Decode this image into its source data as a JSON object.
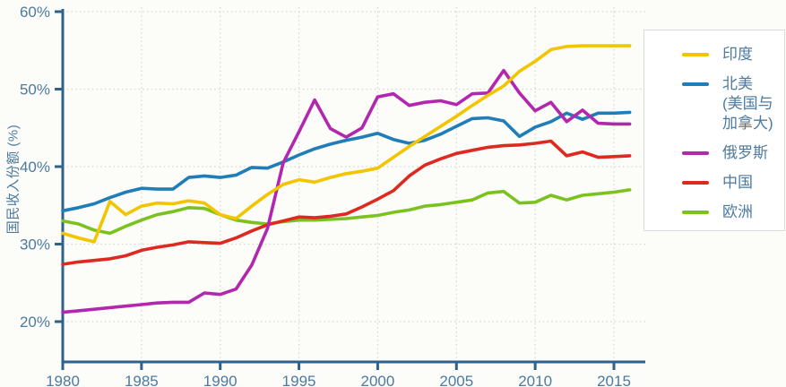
{
  "chart_data": {
    "type": "line",
    "title": "",
    "xlabel": "",
    "ylabel": "国民收入份额 (%)",
    "xlim": [
      1980,
      2017
    ],
    "ylim": [
      14.8,
      60
    ],
    "grid": "dotted",
    "legend_position": "right",
    "x_ticks": [
      1980,
      1985,
      1990,
      1995,
      2000,
      2005,
      2010,
      2015
    ],
    "y_ticks": [
      20,
      30,
      40,
      50,
      60
    ],
    "y_tick_labels": [
      "20%",
      "30%",
      "40%",
      "50%",
      "60%"
    ],
    "x": [
      1980,
      1981,
      1982,
      1983,
      1984,
      1985,
      1986,
      1987,
      1988,
      1989,
      1990,
      1991,
      1992,
      1993,
      1994,
      1995,
      1996,
      1997,
      1998,
      1999,
      2000,
      2001,
      2002,
      2003,
      2004,
      2005,
      2006,
      2007,
      2008,
      2009,
      2010,
      2011,
      2012,
      2013,
      2014,
      2015,
      2016
    ],
    "series": [
      {
        "id": "india",
        "name": "印度",
        "legend_lines": [
          "印度"
        ],
        "color": "#F2C500",
        "values": [
          31.4,
          30.8,
          30.3,
          35.5,
          33.8,
          34.9,
          35.3,
          35.2,
          35.6,
          35.3,
          33.8,
          33.3,
          34.9,
          36.4,
          37.7,
          38.3,
          38.0,
          38.6,
          39.1,
          39.4,
          39.8,
          41.2,
          42.6,
          43.9,
          45.2,
          46.5,
          47.9,
          49.2,
          50.4,
          52.3,
          53.6,
          55.1,
          55.5,
          55.6,
          55.6,
          55.6,
          55.6
        ]
      },
      {
        "id": "north-america",
        "name": "北美 (美国与加拿大)",
        "legend_lines": [
          "北美",
          "(美国与",
          "加拿大)"
        ],
        "color": "#1F7DB8",
        "values": [
          34.3,
          34.7,
          35.2,
          36.0,
          36.7,
          37.2,
          37.1,
          37.1,
          38.6,
          38.8,
          38.6,
          38.9,
          39.9,
          39.8,
          40.6,
          41.5,
          42.3,
          42.9,
          43.4,
          43.8,
          44.3,
          43.5,
          43.0,
          43.4,
          44.2,
          45.2,
          46.2,
          46.3,
          45.9,
          43.9,
          45.1,
          45.8,
          46.9,
          46.1,
          46.9,
          46.9,
          47.0
        ]
      },
      {
        "id": "russia",
        "name": "俄罗斯",
        "legend_lines": [
          "俄罗斯"
        ],
        "color": "#B227AE",
        "values": [
          21.2,
          21.4,
          21.6,
          21.8,
          22.0,
          22.2,
          22.4,
          22.5,
          22.5,
          23.7,
          23.5,
          24.2,
          27.3,
          32.0,
          40.5,
          44.5,
          48.6,
          44.9,
          43.8,
          45.0,
          49.0,
          49.4,
          47.9,
          48.3,
          48.5,
          48.0,
          49.4,
          49.5,
          52.4,
          49.5,
          47.2,
          48.3,
          45.8,
          47.3,
          45.6,
          45.5,
          45.5
        ]
      },
      {
        "id": "china",
        "name": "中国",
        "legend_lines": [
          "中国"
        ],
        "color": "#DE2920",
        "values": [
          27.4,
          27.7,
          27.9,
          28.1,
          28.5,
          29.2,
          29.6,
          29.9,
          30.3,
          30.2,
          30.1,
          30.8,
          31.7,
          32.5,
          33.0,
          33.5,
          33.4,
          33.6,
          33.9,
          34.8,
          35.8,
          36.9,
          38.8,
          40.2,
          41.0,
          41.7,
          42.1,
          42.5,
          42.7,
          42.8,
          43.0,
          43.3,
          41.4,
          41.9,
          41.2,
          41.3,
          41.4
        ]
      },
      {
        "id": "europe",
        "name": "欧洲",
        "legend_lines": [
          "欧洲"
        ],
        "color": "#7CC21E",
        "values": [
          33.0,
          32.6,
          31.8,
          31.4,
          32.3,
          33.1,
          33.8,
          34.2,
          34.7,
          34.6,
          33.8,
          33.1,
          32.8,
          32.6,
          32.9,
          33.1,
          33.1,
          33.2,
          33.3,
          33.5,
          33.7,
          34.1,
          34.4,
          34.9,
          35.1,
          35.4,
          35.7,
          36.6,
          36.8,
          35.3,
          35.4,
          36.3,
          35.7,
          36.3,
          36.5,
          36.7,
          37.0
        ]
      }
    ],
    "colors": {
      "axis": "#2E618C",
      "labels": "#4C7AA0",
      "grid": "#D4D4D4",
      "background": "#FCFCF9",
      "legend_border": "#DBDBDB"
    }
  }
}
